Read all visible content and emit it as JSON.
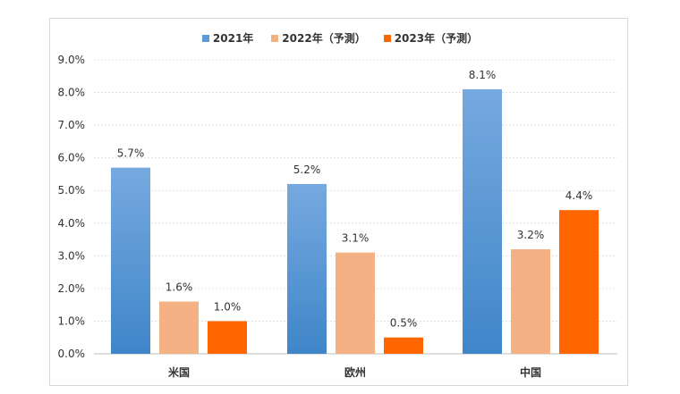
{
  "chart_data": {
    "type": "bar",
    "categories": [
      "米国",
      "欧州",
      "中国"
    ],
    "series": [
      {
        "name": "2021年",
        "values": [
          5.7,
          5.2,
          8.1
        ],
        "labels": [
          "5.7%",
          "5.2%",
          "8.1%"
        ],
        "color": "#5b9bd5"
      },
      {
        "name": "2022年（予測）",
        "values": [
          1.6,
          3.1,
          3.2
        ],
        "labels": [
          "1.6%",
          "3.1%",
          "3.2%"
        ],
        "color": "#f4b183"
      },
      {
        "name": "2023年（予測）",
        "values": [
          1.0,
          0.5,
          4.4
        ],
        "labels": [
          "1.0%",
          "0.5%",
          "4.4%"
        ],
        "color": "#ff6600"
      }
    ],
    "yticks": [
      0,
      1,
      2,
      3,
      4,
      5,
      6,
      7,
      8,
      9
    ],
    "ytick_labels": [
      "0.0%",
      "1.0%",
      "2.0%",
      "3.0%",
      "4.0%",
      "5.0%",
      "6.0%",
      "7.0%",
      "8.0%",
      "9.0%"
    ],
    "ylim": [
      0,
      9
    ],
    "grid": true,
    "legend_position": "top-center"
  }
}
